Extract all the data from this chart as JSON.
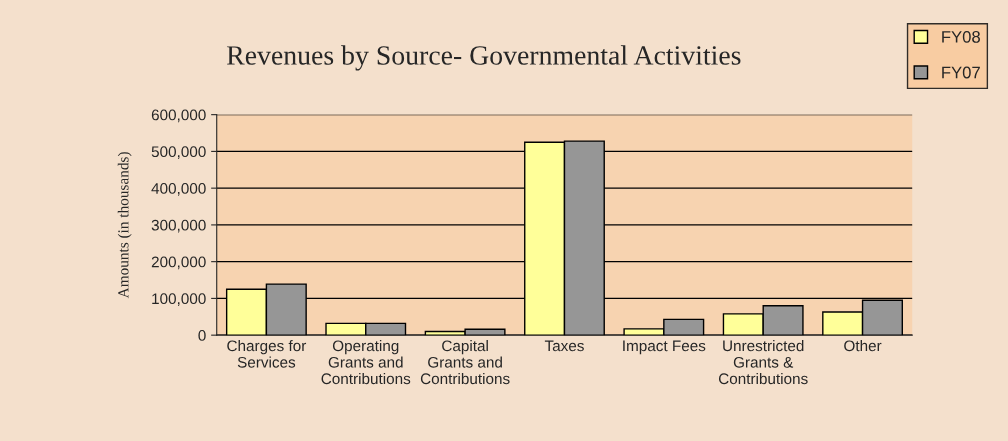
{
  "chart_data": {
    "type": "bar",
    "title": "Revenues by Source- Governmental Activities",
    "ylabel": "Amounts (in thousands)",
    "categories": [
      "Charges for\nServices",
      "Operating\nGrants and\nContributions",
      "Capital\nGrants and\nContributions",
      "Taxes",
      "Impact Fees",
      "Unrestricted\nGrants &\nContributions",
      "Other"
    ],
    "series": [
      {
        "name": "FY08",
        "color": "#ffff99",
        "values": [
          125000,
          32000,
          10000,
          525000,
          17000,
          58000,
          63000
        ]
      },
      {
        "name": "FY07",
        "color": "#969696",
        "values": [
          139000,
          32000,
          16000,
          528000,
          43000,
          80000,
          95000
        ]
      }
    ],
    "ylim": [
      0,
      600000
    ],
    "yticks": [
      {
        "value": 0,
        "label": "0"
      },
      {
        "value": 100000,
        "label": "100,000"
      },
      {
        "value": 200000,
        "label": "200,000"
      },
      {
        "value": 300000,
        "label": "300,000"
      },
      {
        "value": 400000,
        "label": "400,000"
      },
      {
        "value": 500000,
        "label": "500,000"
      },
      {
        "value": 600000,
        "label": "600,000"
      }
    ],
    "grid": "y",
    "legend": "top right"
  }
}
